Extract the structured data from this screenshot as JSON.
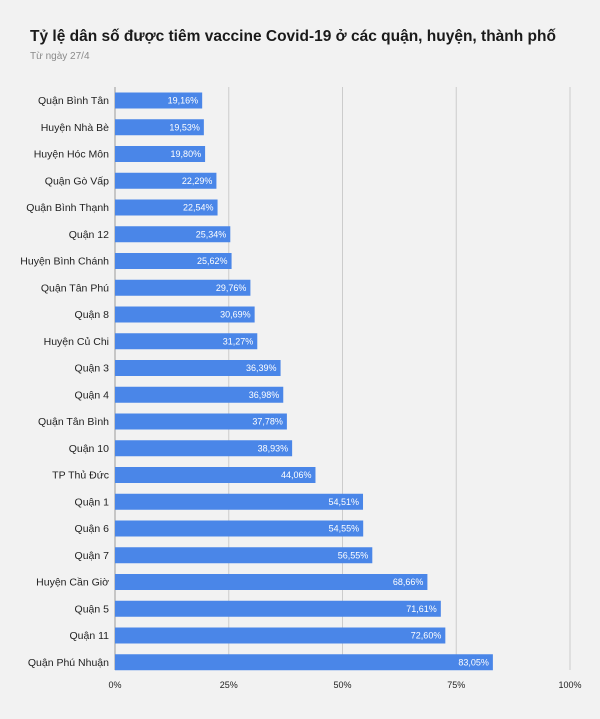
{
  "title": "Tỷ lệ dân số được tiêm vaccine Covid-19 ở các quận, huyện, thành phố",
  "subtitle": "Từ ngày 27/4",
  "chart_data": {
    "type": "bar",
    "orientation": "horizontal",
    "categories": [
      "Quận Bình Tân",
      "Huyện Nhà Bè",
      "Huyện Hóc Môn",
      "Quận Gò Vấp",
      "Quận Bình Thạnh",
      "Quận 12",
      "Huyện Bình Chánh",
      "Quận Tân Phú",
      "Quận 8",
      "Huyện Củ Chi",
      "Quận 3",
      "Quận 4",
      "Quận Tân Bình",
      "Quận 10",
      "TP Thủ Đức",
      "Quận 1",
      "Quận 6",
      "Quận 7",
      "Huyện Cần Giờ",
      "Quận 5",
      "Quận 11",
      "Quận Phú Nhuận"
    ],
    "values": [
      19.16,
      19.53,
      19.8,
      22.29,
      22.54,
      25.34,
      25.62,
      29.76,
      30.69,
      31.27,
      36.39,
      36.98,
      37.78,
      38.93,
      44.06,
      54.51,
      54.55,
      56.55,
      68.66,
      71.61,
      72.6,
      83.05
    ],
    "value_labels": [
      "19,16%",
      "19,53%",
      "19,80%",
      "22,29%",
      "22,54%",
      "25,34%",
      "25,62%",
      "29,76%",
      "30,69%",
      "31,27%",
      "36,39%",
      "36,98%",
      "37,78%",
      "38,93%",
      "44,06%",
      "54,51%",
      "54,55%",
      "56,55%",
      "68,66%",
      "71,61%",
      "72,60%",
      "83,05%"
    ],
    "xlim": [
      0,
      100
    ],
    "xticks": [
      0,
      25,
      50,
      75,
      100
    ],
    "xtick_labels": [
      "0%",
      "25%",
      "50%",
      "75%",
      "100%"
    ],
    "grid": true,
    "bar_color": "#4a86e8",
    "grid_color": "#cccccc"
  }
}
